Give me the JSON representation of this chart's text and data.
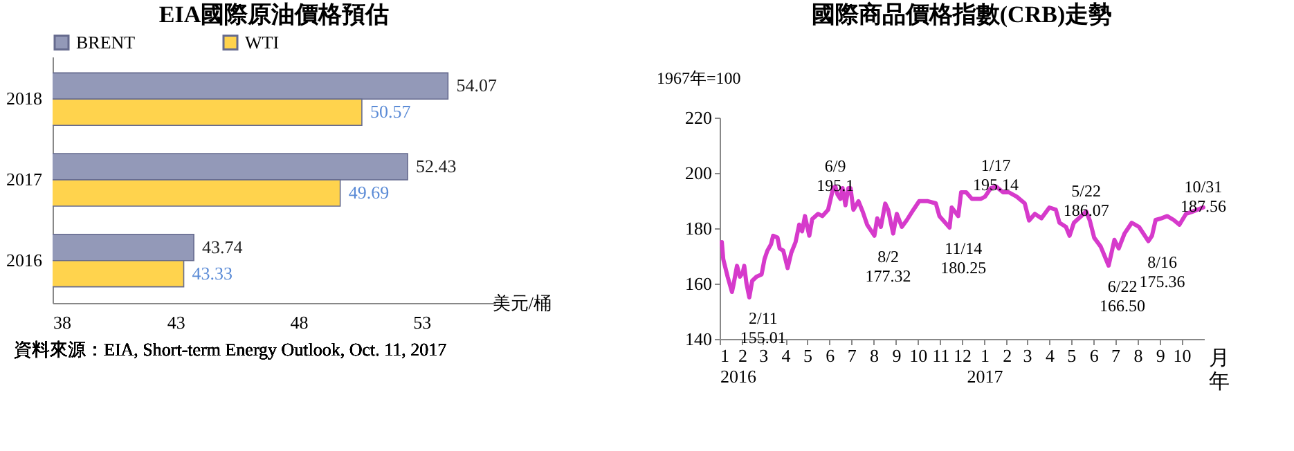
{
  "chart_data": [
    {
      "type": "bar",
      "orientation": "horizontal",
      "title": "EIA國際原油價格預估",
      "xlabel": "美元/桶",
      "categories": [
        "2018",
        "2017",
        "2016"
      ],
      "series": [
        {
          "name": "BRENT",
          "color": "#9399b8",
          "values": [
            54.07,
            52.43,
            43.74
          ]
        },
        {
          "name": "WTI",
          "color": "#ffd34d",
          "values": [
            50.57,
            49.69,
            43.33
          ]
        }
      ],
      "xlim": [
        38,
        56
      ],
      "xticks": [
        38,
        43,
        48,
        53
      ],
      "data_labels": true,
      "legend": "top",
      "annotations": [
        "資料來源：EIA, Short-term Energy Outlook, Oct. 11, 2017"
      ]
    },
    {
      "type": "line",
      "title": "國際商品價格指數(CRB)走勢",
      "ylabel": "1967年=100",
      "xlabel": "月年",
      "x": [
        "2016-01-04",
        "2016-01-06",
        "2016-01-12",
        "2016-01-18",
        "2016-01-20",
        "2016-01-25",
        "2016-01-29",
        "2016-02-02",
        "2016-02-04",
        "2016-02-07",
        "2016-02-11",
        "2016-02-15",
        "2016-02-21",
        "2016-02-28",
        "2016-03-03",
        "2016-03-07",
        "2016-03-12",
        "2016-03-15",
        "2016-03-21",
        "2016-03-24",
        "2016-03-29",
        "2016-04-04",
        "2016-04-09",
        "2016-04-15",
        "2016-04-20",
        "2016-04-24",
        "2016-04-28",
        "2016-05-04",
        "2016-05-08",
        "2016-05-16",
        "2016-05-22",
        "2016-05-30",
        "2016-06-06",
        "2016-06-09",
        "2016-06-12",
        "2016-06-16",
        "2016-06-19",
        "2016-06-23",
        "2016-06-27",
        "2016-06-30",
        "2016-07-04",
        "2016-07-11",
        "2016-07-17",
        "2016-07-23",
        "2016-08-02",
        "2016-08-06",
        "2016-08-11",
        "2016-08-17",
        "2016-08-21",
        "2016-08-28",
        "2016-09-02",
        "2016-09-09",
        "2016-09-16",
        "2016-09-25",
        "2016-10-03",
        "2016-10-15",
        "2016-10-26",
        "2016-10-31",
        "2016-11-14",
        "2016-11-17",
        "2016-11-26",
        "2016-11-30",
        "2016-12-07",
        "2016-12-15",
        "2016-12-27",
        "2017-01-02",
        "2017-01-10",
        "2017-01-17",
        "2017-01-27",
        "2017-02-04",
        "2017-02-15",
        "2017-02-26",
        "2017-03-04",
        "2017-03-12",
        "2017-03-21",
        "2017-04-01",
        "2017-04-10",
        "2017-04-15",
        "2017-04-24",
        "2017-04-29",
        "2017-05-05",
        "2017-05-22",
        "2017-05-27",
        "2017-06-02",
        "2017-06-11",
        "2017-06-22",
        "2017-06-26",
        "2017-06-30",
        "2017-07-06",
        "2017-07-14",
        "2017-07-24",
        "2017-08-03",
        "2017-08-16",
        "2017-08-21",
        "2017-08-26",
        "2017-09-03",
        "2017-09-11",
        "2017-09-20",
        "2017-09-28",
        "2017-10-07",
        "2017-10-15",
        "2017-10-31"
      ],
      "series": [
        {
          "color": "#d63acb",
          "values": [
            175,
            168.8,
            162.5,
            157,
            159.4,
            166.4,
            162.5,
            164,
            166.4,
            160.2,
            155.01,
            161,
            162.5,
            163.3,
            168.8,
            171.9,
            174.2,
            177.3,
            176.6,
            172.7,
            171.9,
            165.6,
            171.1,
            175,
            181.3,
            178.9,
            184.4,
            177.3,
            183.3,
            185.2,
            184.4,
            186.7,
            194.5,
            195.1,
            192.2,
            190.6,
            194.5,
            188.3,
            194.5,
            194.5,
            186.7,
            189.8,
            185.9,
            181.3,
            177.32,
            183.6,
            180.5,
            188.9,
            186.7,
            178.1,
            185.2,
            180.5,
            183,
            186.7,
            189.8,
            189.8,
            189,
            184.4,
            180.25,
            187.5,
            184.4,
            193,
            193,
            190.6,
            190.6,
            191.4,
            194.5,
            195.14,
            193,
            193,
            191.4,
            189,
            182.8,
            185.2,
            183.6,
            187.5,
            186.7,
            182,
            180.5,
            177.3,
            182,
            186.07,
            182.8,
            176.6,
            173.4,
            166.5,
            171.1,
            175.8,
            172.7,
            178.1,
            182,
            180.5,
            175.36,
            177.3,
            183,
            183.6,
            184.4,
            183,
            181.3,
            185.2,
            185.9,
            187.56
          ]
        }
      ],
      "xlim": [
        "2016-01-01",
        "2017-11-01"
      ],
      "xticks": [
        {
          "value": "2016-01-01",
          "label": "1\n2016"
        },
        {
          "value": "2016-02-01",
          "label": "2"
        },
        {
          "value": "2016-03-01",
          "label": "3"
        },
        {
          "value": "2016-04-01",
          "label": "4"
        },
        {
          "value": "2016-05-01",
          "label": "5"
        },
        {
          "value": "2016-06-01",
          "label": "6"
        },
        {
          "value": "2016-07-01",
          "label": "7"
        },
        {
          "value": "2016-08-01",
          "label": "8"
        },
        {
          "value": "2016-09-01",
          "label": "9"
        },
        {
          "value": "2016-10-01",
          "label": "10"
        },
        {
          "value": "2016-11-01",
          "label": "11"
        },
        {
          "value": "2016-12-01",
          "label": "12"
        },
        {
          "value": "2017-01-01",
          "label": "1\n2017"
        },
        {
          "value": "2017-02-01",
          "label": "2"
        },
        {
          "value": "2017-03-01",
          "label": "3"
        },
        {
          "value": "2017-04-01",
          "label": "4"
        },
        {
          "value": "2017-05-01",
          "label": "5"
        },
        {
          "value": "2017-06-01",
          "label": "6"
        },
        {
          "value": "2017-07-01",
          "label": "7"
        },
        {
          "value": "2017-08-01",
          "label": "8"
        },
        {
          "value": "2017-09-01",
          "label": "9"
        },
        {
          "value": "2017-10-01",
          "label": "10"
        }
      ],
      "ylim": [
        140,
        220
      ],
      "yticks": [
        140,
        160,
        180,
        200,
        220
      ],
      "annotations": [
        {
          "text": "2/11\n155.01",
          "x": "2016-02-11",
          "y": 155.01
        },
        {
          "text": "6/9\n195.1",
          "x": "2016-06-09",
          "y": 195.1
        },
        {
          "text": "8/2\n177.32",
          "x": "2016-08-02",
          "y": 177.32
        },
        {
          "text": "11/14\n180.25",
          "x": "2016-11-14",
          "y": 180.25
        },
        {
          "text": "1/17\n195.14",
          "x": "2017-01-17",
          "y": 195.14
        },
        {
          "text": "5/22\n186.07",
          "x": "2017-05-22",
          "y": 186.07
        },
        {
          "text": "6/22\n166.50",
          "x": "2017-06-22",
          "y": 166.5
        },
        {
          "text": "8/16\n175.36",
          "x": "2017-08-16",
          "y": 175.36
        },
        {
          "text": "10/31\n187.56",
          "x": "2017-10-31",
          "y": 187.56
        }
      ]
    }
  ]
}
